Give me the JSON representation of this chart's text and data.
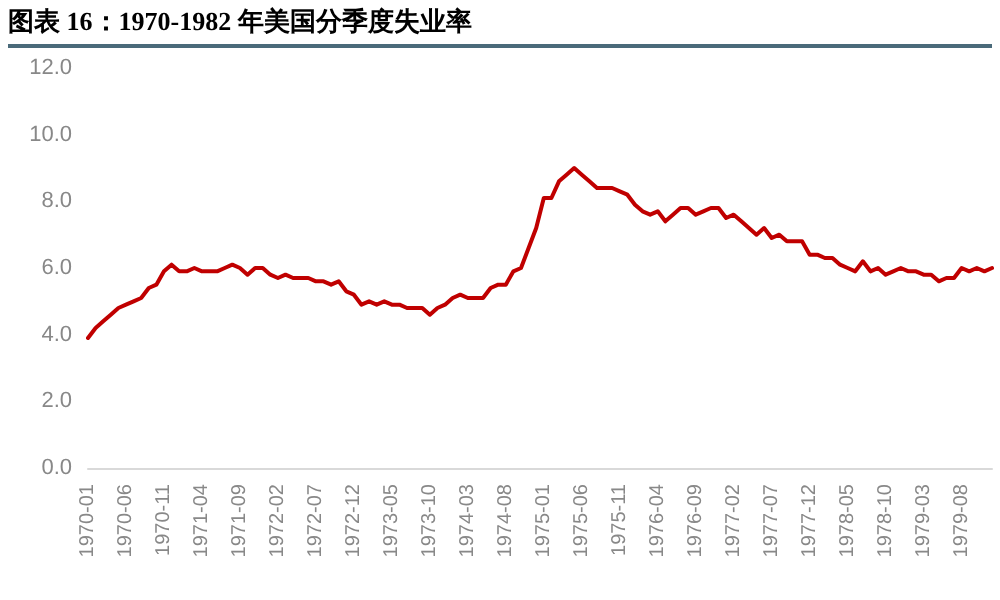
{
  "chart_data": {
    "type": "line",
    "title": "图表 16：1970-1982 年美国分季度失业率",
    "categories": [
      "1970-01",
      null,
      null,
      null,
      null,
      "1970-06",
      null,
      null,
      null,
      null,
      "1970-11",
      null,
      null,
      null,
      null,
      "1971-04",
      null,
      null,
      null,
      null,
      "1971-09",
      null,
      null,
      null,
      null,
      "1972-02",
      null,
      null,
      null,
      null,
      "1972-07",
      null,
      null,
      null,
      null,
      "1972-12",
      null,
      null,
      null,
      null,
      "1973-05",
      null,
      null,
      null,
      null,
      "1973-10",
      null,
      null,
      null,
      null,
      "1974-03",
      null,
      null,
      null,
      null,
      "1974-08",
      null,
      null,
      null,
      null,
      "1975-01",
      null,
      null,
      null,
      null,
      "1975-06",
      null,
      null,
      null,
      null,
      "1975-11",
      null,
      null,
      null,
      null,
      "1976-04",
      null,
      null,
      null,
      null,
      "1976-09",
      null,
      null,
      null,
      null,
      "1977-02",
      null,
      null,
      null,
      null,
      "1977-07",
      null,
      null,
      null,
      null,
      "1977-12",
      null,
      null,
      null,
      null,
      "1978-05",
      null,
      null,
      null,
      null,
      "1978-10",
      null,
      null,
      null,
      null,
      "1979-03",
      null,
      null,
      null,
      null,
      "1979-08",
      null,
      null,
      null,
      null
    ],
    "series": [
      {
        "color": "#c00000",
        "values": [
          3.9,
          4.2,
          4.4,
          4.6,
          4.8,
          4.9,
          5.0,
          5.1,
          5.4,
          5.5,
          5.9,
          6.1,
          5.9,
          5.9,
          6.0,
          5.9,
          5.9,
          5.9,
          6.0,
          6.1,
          6.0,
          5.8,
          6.0,
          6.0,
          5.8,
          5.7,
          5.8,
          5.7,
          5.7,
          5.7,
          5.6,
          5.6,
          5.5,
          5.6,
          5.3,
          5.2,
          4.9,
          5.0,
          4.9,
          5.0,
          4.9,
          4.9,
          4.8,
          4.8,
          4.8,
          4.6,
          4.8,
          4.9,
          5.1,
          5.2,
          5.1,
          5.1,
          5.1,
          5.4,
          5.5,
          5.5,
          5.9,
          6.0,
          6.6,
          7.2,
          8.1,
          8.1,
          8.6,
          8.8,
          9.0,
          8.8,
          8.6,
          8.4,
          8.4,
          8.4,
          8.3,
          8.2,
          7.9,
          7.7,
          7.6,
          7.7,
          7.4,
          7.6,
          7.8,
          7.8,
          7.6,
          7.7,
          7.8,
          7.8,
          7.5,
          7.6,
          7.4,
          7.2,
          7.0,
          7.2,
          6.9,
          7.0,
          6.8,
          6.8,
          6.8,
          6.4,
          6.4,
          6.3,
          6.3,
          6.1,
          6.0,
          5.9,
          6.2,
          5.9,
          6.0,
          5.8,
          5.9,
          6.0,
          5.9,
          5.9,
          5.8,
          5.8,
          5.6,
          5.7,
          5.7,
          6.0,
          5.9,
          6.0,
          5.9,
          6.0
        ]
      }
    ],
    "ylim": [
      0,
      12
    ],
    "yticks": [
      {
        "value": 0,
        "label": "0.0"
      },
      {
        "value": 2,
        "label": "2.0"
      },
      {
        "value": 4,
        "label": "4.0"
      },
      {
        "value": 6,
        "label": "6.0"
      },
      {
        "value": 8,
        "label": "8.0"
      },
      {
        "value": 10,
        "label": "10.0"
      },
      {
        "value": 12,
        "label": "12.0"
      }
    ],
    "grid": false,
    "marker": "none",
    "line_style": "solid"
  }
}
